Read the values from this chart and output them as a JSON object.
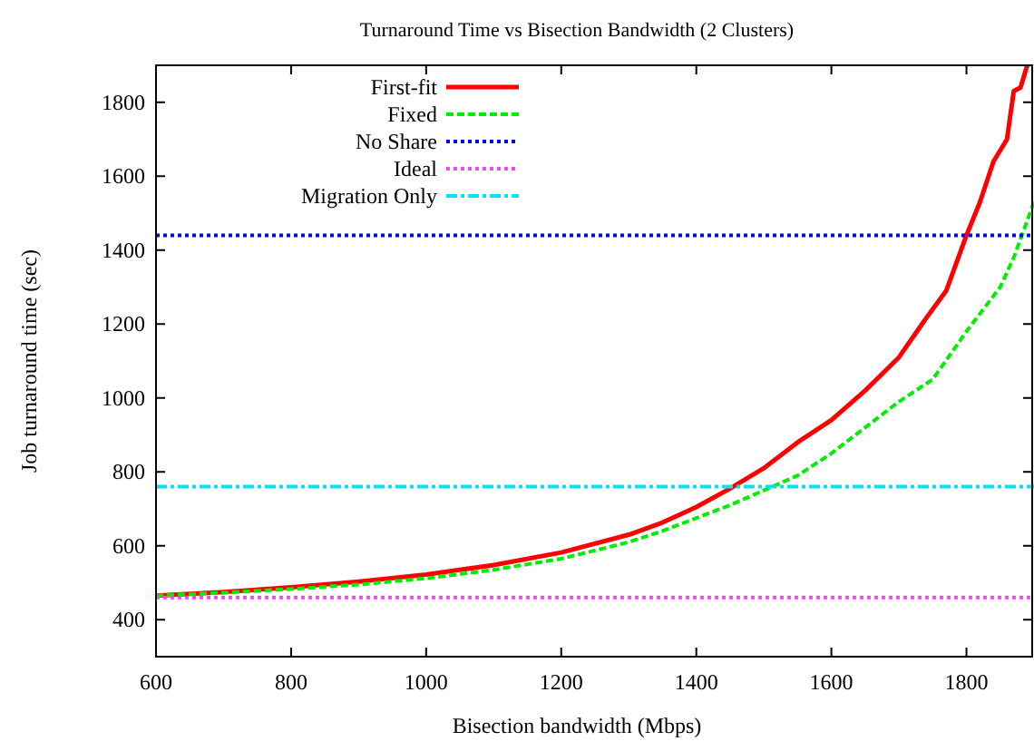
{
  "chart_data": {
    "type": "line",
    "title": "Turnaround Time vs Bisection Bandwidth (2 Clusters)",
    "xlabel": "Bisection bandwidth (Mbps)",
    "ylabel": "Job turnaround time (sec)",
    "xlim": [
      600,
      1900
    ],
    "ylim": [
      300,
      1900
    ],
    "xticks": [
      600,
      800,
      1000,
      1200,
      1400,
      1600,
      1800
    ],
    "yticks": [
      400,
      600,
      800,
      1000,
      1200,
      1400,
      1600,
      1800
    ],
    "grid": false,
    "legend": "top left",
    "series": [
      {
        "name": "First-fit",
        "color": "#ff0000",
        "line_style": "solid",
        "x": [
          600,
          700,
          800,
          900,
          1000,
          1100,
          1200,
          1300,
          1350,
          1400,
          1450,
          1500,
          1550,
          1600,
          1650,
          1700,
          1740,
          1770,
          1800,
          1820,
          1840,
          1860,
          1870,
          1880,
          1890
        ],
        "values": [
          465,
          475,
          488,
          503,
          522,
          548,
          582,
          630,
          663,
          705,
          755,
          810,
          880,
          940,
          1020,
          1110,
          1215,
          1290,
          1440,
          1530,
          1640,
          1700,
          1830,
          1840,
          1900
        ]
      },
      {
        "name": "Fixed",
        "color": "#00ee00",
        "line_style": "dashed",
        "x": [
          600,
          700,
          800,
          900,
          1000,
          1100,
          1200,
          1300,
          1350,
          1400,
          1450,
          1500,
          1550,
          1600,
          1650,
          1700,
          1750,
          1800,
          1850,
          1870,
          1900
        ],
        "values": [
          465,
          473,
          483,
          495,
          512,
          535,
          565,
          610,
          640,
          675,
          710,
          750,
          790,
          850,
          920,
          990,
          1050,
          1180,
          1300,
          1380,
          1530
        ]
      },
      {
        "name": "No Share",
        "color": "#0000ff",
        "line_style": "dotted",
        "x": [
          600,
          1900
        ],
        "values": [
          1440,
          1440
        ]
      },
      {
        "name": "Ideal",
        "color": "#ff44ff",
        "line_style": "dotted",
        "x": [
          600,
          1900
        ],
        "values": [
          460,
          460
        ]
      },
      {
        "name": "Migration Only",
        "color": "#00e5ee",
        "line_style": "dashdot",
        "x": [
          600,
          1900
        ],
        "values": [
          760,
          760
        ]
      }
    ]
  }
}
